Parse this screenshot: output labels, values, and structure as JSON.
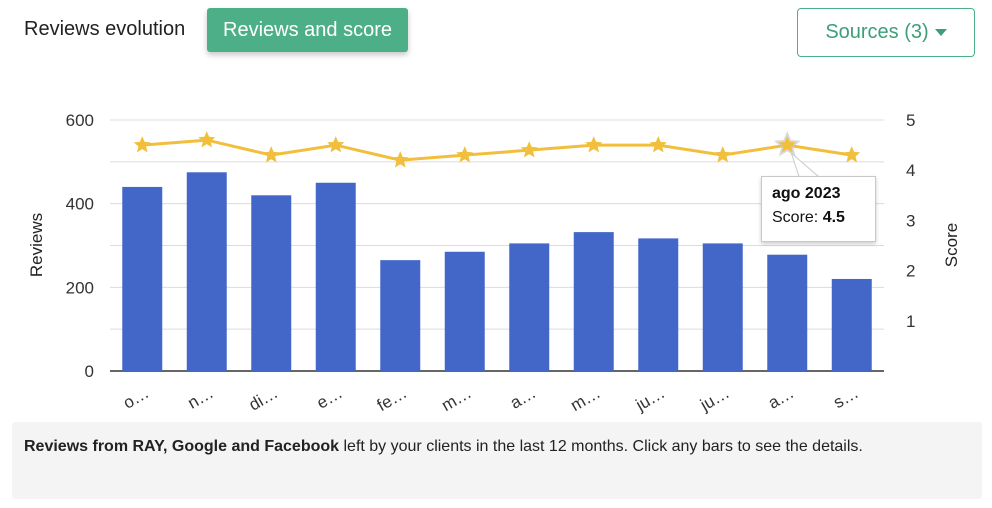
{
  "header": {
    "title": "Reviews evolution",
    "toggle_label": "Reviews and score",
    "sources_label": "Sources (3)"
  },
  "chart_data": {
    "type": "bar",
    "categories": [
      "o…",
      "n…",
      "di…",
      "e…",
      "fe…",
      "m…",
      "a…",
      "m…",
      "ju…",
      "ju…",
      "a…",
      "s…"
    ],
    "series": [
      {
        "name": "",
        "type": "bar",
        "axis": "left",
        "values": [
          440,
          475,
          420,
          450,
          265,
          285,
          305,
          332,
          317,
          305,
          278,
          220
        ]
      },
      {
        "name": "",
        "type": "line",
        "axis": "right",
        "values": [
          4.5,
          4.6,
          4.3,
          4.5,
          4.2,
          4.3,
          4.4,
          4.5,
          4.5,
          4.3,
          4.5,
          4.3
        ]
      }
    ],
    "ylabel": "Reviews",
    "y2label": "Score",
    "ylim": [
      0,
      600
    ],
    "y2lim": [
      0,
      5
    ],
    "yticks": [
      0,
      200,
      400,
      600
    ],
    "y2ticks": [
      1,
      2,
      3,
      4,
      5
    ],
    "grid": true,
    "bar_color": "#4267c9",
    "line_color": "#f2bf3c",
    "tooltip": {
      "title": "ago 2023",
      "label": "Score:",
      "value": "4.5",
      "index": 10
    }
  },
  "note": {
    "bold": "Reviews from RAY, Google and Facebook",
    "text": " left by your clients in the last 12 months. Click any bars to see the details."
  }
}
